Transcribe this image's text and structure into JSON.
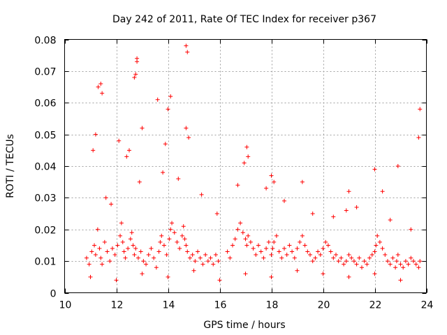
{
  "chart_data": {
    "type": "scatter",
    "title": "Day 242 of 2011, Rate Of TEC Index for receiver p367",
    "xlabel": "GPS time / hours",
    "ylabel": "ROTI / TECUs",
    "xlim": [
      10,
      24
    ],
    "ylim": [
      0,
      0.08
    ],
    "x_ticks": [
      "10",
      "12",
      "14",
      "16",
      "18",
      "20",
      "22",
      "24"
    ],
    "y_ticks": [
      "0",
      "0.01",
      "0.02",
      "0.03",
      "0.04",
      "0.05",
      "0.06",
      "0.07",
      "0.08"
    ],
    "grid": true,
    "marker": "plus",
    "color": "#ff0000",
    "series": [
      {
        "x": [
          10.85,
          10.95,
          11.05,
          11.15,
          11.2,
          11.28,
          11.35,
          11.4,
          11.45,
          11.55,
          11.65,
          11.75,
          11.85,
          11.95,
          12.05,
          12.15,
          12.2,
          12.25,
          12.3,
          12.35,
          12.45,
          12.55,
          12.6,
          12.65,
          12.7,
          12.75,
          12.85,
          12.95,
          13.05,
          13.15,
          13.25,
          13.35,
          13.45,
          13.55,
          13.65,
          13.7,
          13.75,
          13.85,
          13.95,
          14.05,
          14.1,
          14.15,
          14.25,
          14.35,
          14.45,
          14.55,
          14.6,
          14.65,
          14.7,
          14.75,
          14.85,
          14.95,
          15.05,
          15.15,
          15.25,
          15.35,
          15.45,
          15.55,
          15.65,
          15.75,
          15.85,
          15.95,
          16.3,
          16.4,
          16.5,
          16.6,
          16.7,
          16.8,
          16.9,
          17.0,
          17.05,
          17.1,
          17.2,
          17.3,
          17.4,
          17.5,
          17.6,
          17.7,
          17.8,
          17.9,
          18.0,
          18.05,
          18.1,
          18.2,
          18.3,
          18.4,
          18.5,
          18.6,
          18.7,
          18.8,
          18.9,
          19.0,
          19.1,
          19.2,
          19.3,
          19.4,
          19.5,
          19.6,
          19.7,
          19.8,
          19.9,
          20.0,
          20.1,
          20.2,
          20.3,
          20.4,
          20.5,
          20.6,
          20.7,
          20.8,
          20.9,
          21.0,
          21.1,
          21.2,
          21.3,
          21.4,
          21.5,
          21.6,
          21.7,
          21.8,
          21.9,
          22.0,
          22.05,
          22.1,
          22.2,
          22.3,
          22.4,
          22.5,
          22.6,
          22.7,
          22.8,
          22.85,
          22.9,
          23.0,
          23.1,
          23.2,
          23.3,
          23.4,
          23.5,
          23.6,
          23.7,
          23.75,
          11.3,
          11.4,
          11.45,
          12.7,
          12.75,
          12.8,
          14.7,
          14.75,
          12.8,
          12.1,
          11.1,
          11.2,
          13.6,
          14.1,
          14.0,
          14.7,
          14.8,
          13.9,
          12.5,
          12.4,
          13.0,
          17.05,
          17.1,
          16.95,
          18.0,
          18.1,
          22.0,
          22.3,
          22.9,
          23.75,
          23.7,
          21.0,
          19.2,
          20.9,
          11.6,
          11.8,
          12.9,
          13.8,
          14.4,
          15.3,
          15.9,
          16.7,
          17.8,
          18.5,
          19.6,
          20.4,
          21.3,
          22.6,
          23.4,
          11.0,
          12.0,
          13.0,
          14.0,
          15.0,
          16.0,
          17.0,
          18.0,
          19.0,
          20.0,
          21.0,
          22.0,
          23.0
        ],
        "y": [
          0.011,
          0.009,
          0.013,
          0.015,
          0.012,
          0.02,
          0.014,
          0.011,
          0.009,
          0.016,
          0.013,
          0.01,
          0.014,
          0.012,
          0.015,
          0.018,
          0.022,
          0.016,
          0.013,
          0.011,
          0.014,
          0.017,
          0.019,
          0.015,
          0.012,
          0.014,
          0.011,
          0.013,
          0.01,
          0.009,
          0.012,
          0.014,
          0.011,
          0.008,
          0.013,
          0.016,
          0.018,
          0.015,
          0.012,
          0.017,
          0.02,
          0.022,
          0.019,
          0.016,
          0.014,
          0.018,
          0.021,
          0.017,
          0.015,
          0.013,
          0.011,
          0.012,
          0.01,
          0.013,
          0.011,
          0.009,
          0.012,
          0.01,
          0.011,
          0.009,
          0.012,
          0.01,
          0.013,
          0.011,
          0.015,
          0.017,
          0.02,
          0.022,
          0.019,
          0.017,
          0.015,
          0.018,
          0.016,
          0.014,
          0.012,
          0.015,
          0.013,
          0.011,
          0.014,
          0.016,
          0.012,
          0.014,
          0.016,
          0.018,
          0.013,
          0.011,
          0.014,
          0.012,
          0.015,
          0.013,
          0.011,
          0.014,
          0.016,
          0.018,
          0.015,
          0.013,
          0.012,
          0.01,
          0.011,
          0.013,
          0.012,
          0.014,
          0.016,
          0.015,
          0.013,
          0.011,
          0.012,
          0.01,
          0.011,
          0.009,
          0.01,
          0.012,
          0.011,
          0.01,
          0.009,
          0.011,
          0.008,
          0.01,
          0.009,
          0.011,
          0.012,
          0.013,
          0.015,
          0.018,
          0.016,
          0.014,
          0.012,
          0.01,
          0.009,
          0.011,
          0.008,
          0.01,
          0.012,
          0.009,
          0.008,
          0.01,
          0.009,
          0.011,
          0.01,
          0.009,
          0.008,
          0.01,
          0.065,
          0.066,
          0.063,
          0.068,
          0.069,
          0.073,
          0.078,
          0.076,
          0.074,
          0.048,
          0.045,
          0.05,
          0.061,
          0.062,
          0.058,
          0.052,
          0.049,
          0.047,
          0.045,
          0.043,
          0.052,
          0.046,
          0.043,
          0.041,
          0.037,
          0.035,
          0.039,
          0.032,
          0.04,
          0.058,
          0.049,
          0.032,
          0.035,
          0.026,
          0.03,
          0.028,
          0.035,
          0.038,
          0.036,
          0.031,
          0.025,
          0.034,
          0.033,
          0.029,
          0.025,
          0.024,
          0.027,
          0.023,
          0.02,
          0.005,
          0.004,
          0.006,
          0.005,
          0.007,
          0.004,
          0.006,
          0.005,
          0.007,
          0.006,
          0.005,
          0.006,
          0.004
        ]
      }
    ]
  }
}
